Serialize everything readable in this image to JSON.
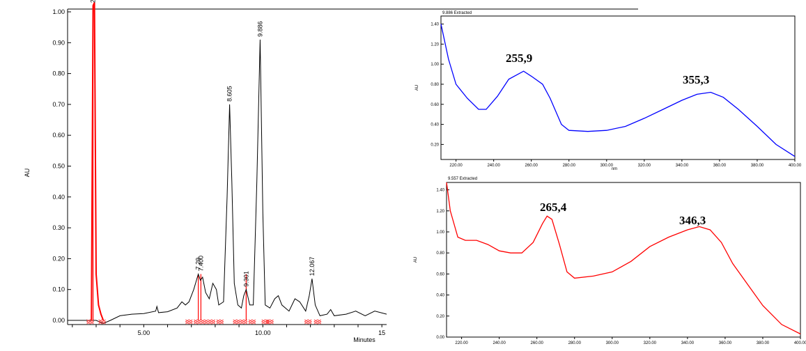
{
  "chart_data": [
    {
      "type": "line",
      "ylabel": "AU",
      "xlabel": "Minutes",
      "ylim": [
        0,
        1.0
      ],
      "xlim": [
        1.8,
        15.2
      ],
      "y_ticks": [
        "0.00",
        "0.10",
        "0.20",
        "0.30",
        "0.40",
        "0.50",
        "0.60",
        "0.70",
        "0.80",
        "0.90",
        "1.00"
      ],
      "x_ticks": [
        "5.00",
        "10.00",
        "15"
      ],
      "series": [
        {
          "color": "#000000",
          "points": [
            [
              1.8,
              0
            ],
            [
              3.0,
              0
            ],
            [
              3.3,
              -0.01
            ],
            [
              3.6,
              0
            ],
            [
              4.0,
              0.015
            ],
            [
              4.5,
              0.02
            ],
            [
              5.0,
              0.022
            ],
            [
              5.5,
              0.03
            ],
            [
              5.55,
              0.045
            ],
            [
              5.62,
              0.025
            ],
            [
              6.0,
              0.028
            ],
            [
              6.4,
              0.04
            ],
            [
              6.6,
              0.06
            ],
            [
              6.75,
              0.05
            ],
            [
              6.9,
              0.06
            ],
            [
              7.1,
              0.1
            ],
            [
              7.29,
              0.15
            ],
            [
              7.38,
              0.13
            ],
            [
              7.47,
              0.14
            ],
            [
              7.6,
              0.09
            ],
            [
              7.75,
              0.07
            ],
            [
              7.9,
              0.12
            ],
            [
              8.05,
              0.1
            ],
            [
              8.15,
              0.05
            ],
            [
              8.35,
              0.06
            ],
            [
              8.5,
              0.4
            ],
            [
              8.605,
              0.7
            ],
            [
              8.7,
              0.45
            ],
            [
              8.8,
              0.12
            ],
            [
              8.95,
              0.05
            ],
            [
              9.1,
              0.04
            ],
            [
              9.2,
              0.08
            ],
            [
              9.301,
              0.1
            ],
            [
              9.45,
              0.05
            ],
            [
              9.6,
              0.05
            ],
            [
              9.75,
              0.45
            ],
            [
              9.886,
              0.91
            ],
            [
              10.0,
              0.35
            ],
            [
              10.1,
              0.05
            ],
            [
              10.3,
              0.04
            ],
            [
              10.5,
              0.07
            ],
            [
              10.65,
              0.08
            ],
            [
              10.8,
              0.05
            ],
            [
              11.1,
              0.03
            ],
            [
              11.35,
              0.07
            ],
            [
              11.55,
              0.06
            ],
            [
              11.8,
              0.03
            ],
            [
              11.95,
              0.08
            ],
            [
              12.067,
              0.135
            ],
            [
              12.2,
              0.05
            ],
            [
              12.4,
              0.015
            ],
            [
              12.7,
              0.02
            ],
            [
              12.85,
              0.035
            ],
            [
              13.0,
              0.015
            ],
            [
              13.5,
              0.02
            ],
            [
              13.9,
              0.03
            ],
            [
              14.3,
              0.015
            ],
            [
              14.7,
              0.03
            ],
            [
              15.2,
              0.02
            ]
          ]
        },
        {
          "color": "#ff0000",
          "points": [
            [
              2.8,
              0
            ],
            [
              2.87,
              1.02
            ],
            [
              2.93,
              1.03
            ],
            [
              3.0,
              0.15
            ],
            [
              3.1,
              0.05
            ],
            [
              3.2,
              0.02
            ],
            [
              3.3,
              0
            ]
          ]
        }
      ],
      "peak_labels": [
        {
          "x": 2.87,
          "y": 1.02,
          "text": "2.870"
        },
        {
          "x": 7.29,
          "y": 0.155,
          "text": "7.29"
        },
        {
          "x": 7.4,
          "y": 0.15,
          "text": "7.400"
        },
        {
          "x": 8.605,
          "y": 0.7,
          "text": "8.605"
        },
        {
          "x": 9.301,
          "y": 0.1,
          "text": "9.301"
        },
        {
          "x": 9.886,
          "y": 0.91,
          "text": "9.886"
        },
        {
          "x": 12.067,
          "y": 0.135,
          "text": "12.067"
        }
      ],
      "drop_lines": [
        2.87,
        7.29,
        7.4,
        9.301
      ]
    },
    {
      "type": "line",
      "title": "9.886 Extracted",
      "ylabel": "AU",
      "xlabel": "nm",
      "xlim": [
        212,
        400
      ],
      "ylim": [
        0.05,
        1.48
      ],
      "y_ticks": [
        "0.20",
        "0.40",
        "0.60",
        "0.80",
        "1.00",
        "1.20",
        "1.40"
      ],
      "x_ticks": [
        "220.00",
        "240.00",
        "260.00",
        "280.00",
        "300.00",
        "320.00",
        "340.00",
        "360.00",
        "380.00",
        "400.00"
      ],
      "color": "#0000ff",
      "annotations": [
        "255,9",
        "355,3"
      ],
      "series": [
        {
          "points": [
            [
              212,
              1.4
            ],
            [
              216,
              1.05
            ],
            [
              220,
              0.8
            ],
            [
              226,
              0.66
            ],
            [
              232,
              0.55
            ],
            [
              236,
              0.55
            ],
            [
              242,
              0.68
            ],
            [
              248,
              0.85
            ],
            [
              255.9,
              0.93
            ],
            [
              260,
              0.88
            ],
            [
              266,
              0.8
            ],
            [
              270,
              0.66
            ],
            [
              276,
              0.4
            ],
            [
              280,
              0.34
            ],
            [
              290,
              0.33
            ],
            [
              300,
              0.34
            ],
            [
              310,
              0.38
            ],
            [
              320,
              0.46
            ],
            [
              330,
              0.55
            ],
            [
              340,
              0.64
            ],
            [
              348,
              0.7
            ],
            [
              355.3,
              0.72
            ],
            [
              362,
              0.67
            ],
            [
              370,
              0.55
            ],
            [
              380,
              0.38
            ],
            [
              390,
              0.2
            ],
            [
              400,
              0.08
            ]
          ]
        }
      ]
    },
    {
      "type": "line",
      "title": "9.557 Extracted",
      "ylabel": "AU",
      "xlim": [
        212,
        400
      ],
      "ylim": [
        0.0,
        1.47
      ],
      "y_ticks": [
        "0.00",
        "0.20",
        "0.40",
        "0.60",
        "0.80",
        "1.00",
        "1.20",
        "1.40"
      ],
      "x_ticks": [
        "220.00",
        "240.00",
        "260.00",
        "280.00",
        "300.00",
        "320.00",
        "340.00",
        "360.00",
        "380.00",
        "400.00"
      ],
      "color": "#ff0000",
      "annotations": [
        "265,4",
        "346,3"
      ],
      "series": [
        {
          "points": [
            [
              212,
              1.47
            ],
            [
              214,
              1.2
            ],
            [
              218,
              0.95
            ],
            [
              222,
              0.92
            ],
            [
              228,
              0.92
            ],
            [
              234,
              0.88
            ],
            [
              240,
              0.82
            ],
            [
              246,
              0.8
            ],
            [
              252,
              0.8
            ],
            [
              258,
              0.9
            ],
            [
              263,
              1.08
            ],
            [
              265.4,
              1.15
            ],
            [
              268,
              1.12
            ],
            [
              272,
              0.88
            ],
            [
              276,
              0.62
            ],
            [
              280,
              0.56
            ],
            [
              290,
              0.58
            ],
            [
              300,
              0.62
            ],
            [
              310,
              0.72
            ],
            [
              320,
              0.86
            ],
            [
              330,
              0.95
            ],
            [
              340,
              1.02
            ],
            [
              346.3,
              1.05
            ],
            [
              352,
              1.02
            ],
            [
              358,
              0.9
            ],
            [
              364,
              0.7
            ],
            [
              372,
              0.5
            ],
            [
              380,
              0.3
            ],
            [
              390,
              0.12
            ],
            [
              400,
              0.03
            ]
          ]
        }
      ]
    }
  ]
}
